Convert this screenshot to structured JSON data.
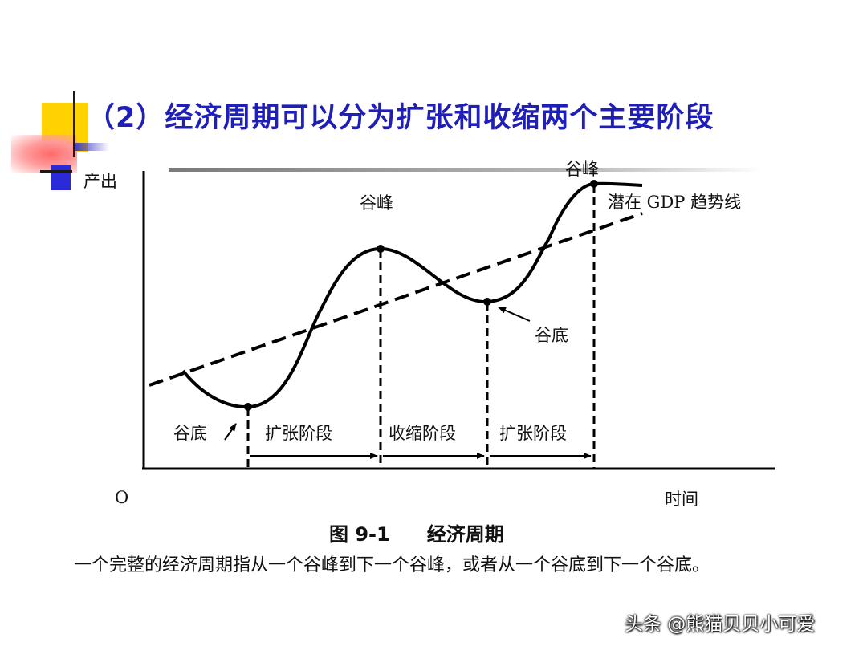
{
  "title": "（2）经济周期可以分为扩张和收缩两个主要阶段",
  "diagram": {
    "y_axis_label": "产出",
    "origin_label": "O",
    "x_axis_label": "时间",
    "trend_line_label": "潜在 GDP 趋势线",
    "peak_label_1": "谷峰",
    "peak_label_2": "谷峰",
    "trough_label_1": "谷底",
    "trough_label_2": "谷底",
    "phases": [
      "扩张阶段",
      "收缩阶段",
      "扩张阶段"
    ]
  },
  "caption": {
    "number": "图 9-1",
    "name": "经济周期"
  },
  "description": "一个完整的经济周期指从一个谷峰到下一个谷峰，或者从一个谷底到下一个谷底。",
  "watermark": "头条 @熊猫贝贝小可爱",
  "colors": {
    "title": "#1f1fb8",
    "accent_yellow": "#ffd200",
    "accent_blue": "#2a2ad8",
    "accent_pink": "#ff6a6a"
  }
}
